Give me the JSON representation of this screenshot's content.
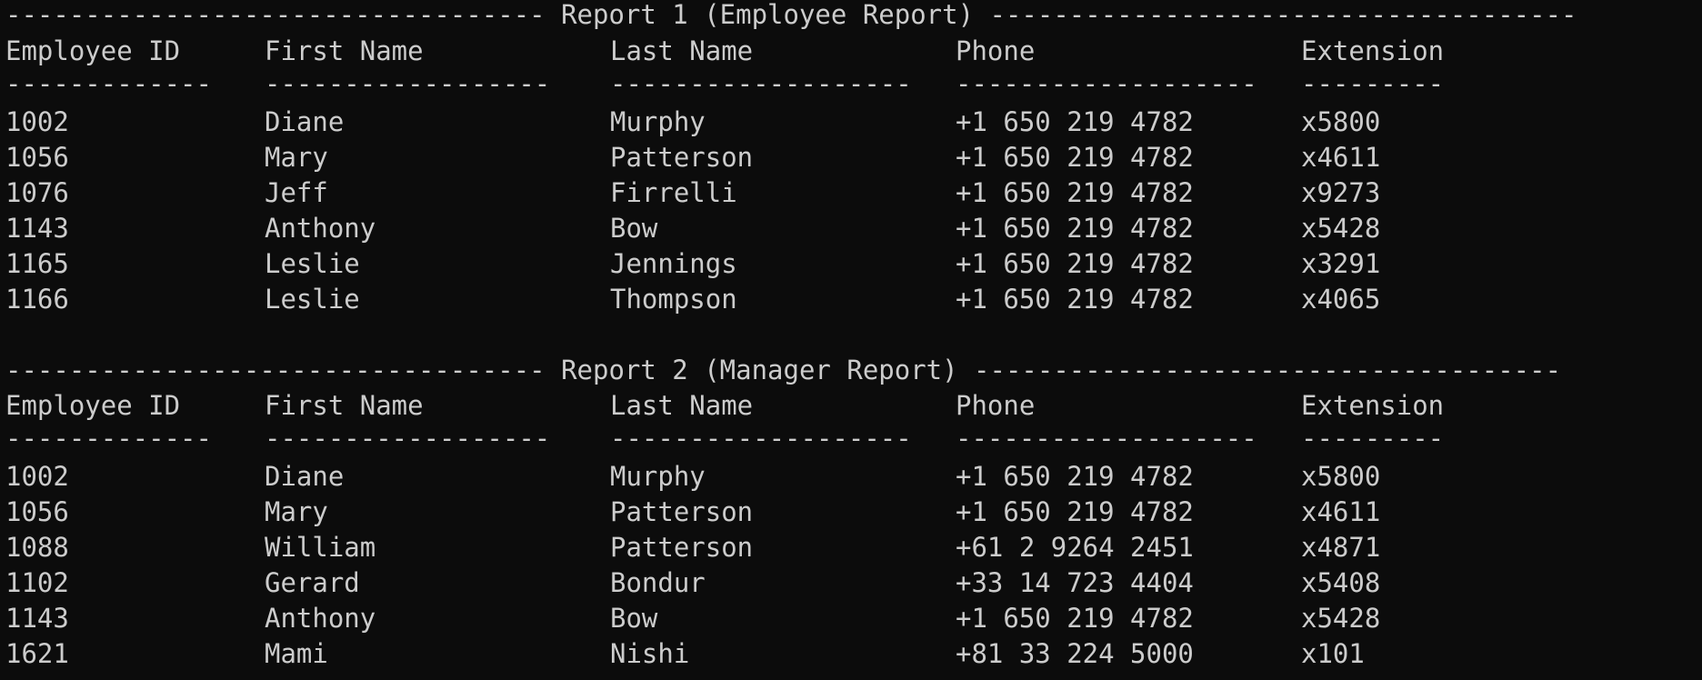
{
  "report1": {
    "banner_left": "----------------------------------",
    "banner_title": " Report 1 (Employee Report) ",
    "banner_right": "-------------------------------------",
    "headers": [
      "Employee ID",
      "First Name",
      "Last Name",
      "Phone",
      "Extension"
    ],
    "underlines": [
      "-------------",
      "------------------",
      "-------------------",
      "-------------------",
      "---------"
    ],
    "rows": [
      [
        "1002",
        "Diane",
        "Murphy",
        "+1 650 219 4782",
        "x5800"
      ],
      [
        "1056",
        "Mary",
        "Patterson",
        "+1 650 219 4782",
        "x4611"
      ],
      [
        "1076",
        "Jeff",
        "Firrelli",
        "+1 650 219 4782",
        "x9273"
      ],
      [
        "1143",
        "Anthony",
        "Bow",
        "+1 650 219 4782",
        "x5428"
      ],
      [
        "1165",
        "Leslie",
        "Jennings",
        "+1 650 219 4782",
        "x3291"
      ],
      [
        "1166",
        "Leslie",
        "Thompson",
        "+1 650 219 4782",
        "x4065"
      ]
    ]
  },
  "report2": {
    "banner_left": "----------------------------------",
    "banner_title": " Report 2 (Manager Report) ",
    "banner_right": "-------------------------------------",
    "headers": [
      "Employee ID",
      "First Name",
      "Last Name",
      "Phone",
      "Extension"
    ],
    "underlines": [
      "-------------",
      "------------------",
      "-------------------",
      "-------------------",
      "---------"
    ],
    "rows": [
      [
        "1002",
        "Diane",
        "Murphy",
        "+1 650 219 4782",
        "x5800"
      ],
      [
        "1056",
        "Mary",
        "Patterson",
        "+1 650 219 4782",
        "x4611"
      ],
      [
        "1088",
        "William",
        "Patterson",
        "+61 2 9264 2451",
        "x4871"
      ],
      [
        "1102",
        "Gerard",
        "Bondur",
        "+33 14 723 4404",
        "x5408"
      ],
      [
        "1143",
        "Anthony",
        "Bow",
        "+1 650 219 4782",
        "x5428"
      ],
      [
        "1621",
        "Mami",
        "Nishi",
        "+81 33 224 5000",
        "x101"
      ]
    ]
  }
}
